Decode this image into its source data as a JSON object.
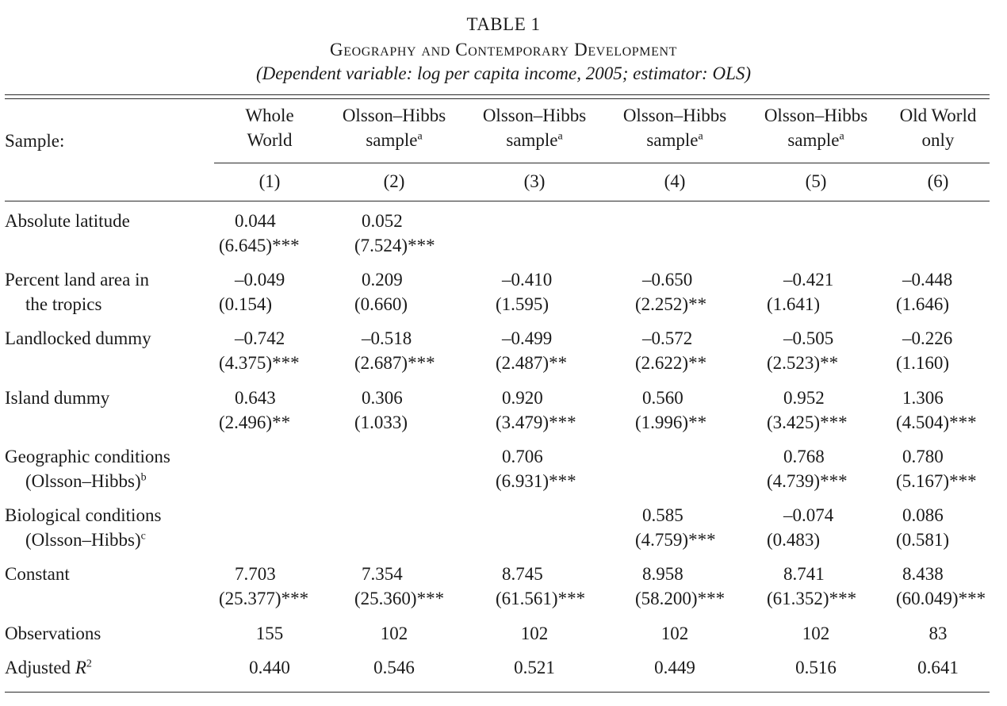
{
  "table": {
    "number": "TABLE 1",
    "title": "Geography and Contemporary Development",
    "subtitle": "(Dependent variable: log per capita income, 2005; estimator: OLS)",
    "sample_label": "Sample:",
    "columns": [
      {
        "line1": "Whole",
        "line2": "World",
        "sup": "",
        "num": "(1)"
      },
      {
        "line1": "Olsson–Hibbs",
        "line2": "sample",
        "sup": "a",
        "num": "(2)"
      },
      {
        "line1": "Olsson–Hibbs",
        "line2": "sample",
        "sup": "a",
        "num": "(3)"
      },
      {
        "line1": "Olsson–Hibbs",
        "line2": "sample",
        "sup": "a",
        "num": "(4)"
      },
      {
        "line1": "Olsson–Hibbs",
        "line2": "sample",
        "sup": "a",
        "num": "(5)"
      },
      {
        "line1": "Old World",
        "line2": "only",
        "sup": "",
        "num": "(6)"
      }
    ],
    "rows": [
      {
        "label1": "Absolute latitude",
        "label2": "",
        "sup": "",
        "coef": [
          "0.044",
          "0.052",
          "",
          "",
          "",
          ""
        ],
        "t": [
          "(6.645)***",
          "(7.524)***",
          "",
          "",
          "",
          ""
        ]
      },
      {
        "label1": "Percent land area in",
        "label2": "the tropics",
        "sup": "",
        "coef": [
          "–0.049",
          "0.209",
          "–0.410",
          "–0.650",
          "–0.421",
          "–0.448"
        ],
        "t": [
          "(0.154)",
          "(0.660)",
          "(1.595)",
          "(2.252)**",
          "(1.641)",
          "(1.646)"
        ]
      },
      {
        "label1": "Landlocked dummy",
        "label2": "",
        "sup": "",
        "coef": [
          "–0.742",
          "–0.518",
          "–0.499",
          "–0.572",
          "–0.505",
          "–0.226"
        ],
        "t": [
          "(4.375)***",
          "(2.687)***",
          "(2.487)**",
          "(2.622)**",
          "(2.523)**",
          "(1.160)"
        ]
      },
      {
        "label1": "Island dummy",
        "label2": "",
        "sup": "",
        "coef": [
          "0.643",
          "0.306",
          "0.920",
          "0.560",
          "0.952",
          "1.306"
        ],
        "t": [
          "(2.496)**",
          "(1.033)",
          "(3.479)***",
          "(1.996)**",
          "(3.425)***",
          "(4.504)***"
        ]
      },
      {
        "label1": "Geographic conditions",
        "label2": "(Olsson–Hibbs)",
        "sup": "b",
        "coef": [
          "",
          "",
          "0.706",
          "",
          "0.768",
          "0.780"
        ],
        "t": [
          "",
          "",
          "(6.931)***",
          "",
          "(4.739)***",
          "(5.167)***"
        ]
      },
      {
        "label1": "Biological conditions",
        "label2": "(Olsson–Hibbs)",
        "sup": "c",
        "coef": [
          "",
          "",
          "",
          "0.585",
          "–0.074",
          "0.086"
        ],
        "t": [
          "",
          "",
          "",
          "(4.759)***",
          "(0.483)",
          "(0.581)"
        ]
      },
      {
        "label1": "Constant",
        "label2": "",
        "sup": "",
        "coef": [
          "7.703",
          "7.354",
          "8.745",
          "8.958",
          "8.741",
          "8.438"
        ],
        "t": [
          "(25.377)***",
          "(25.360)***",
          "(61.561)***",
          "(58.200)***",
          "(61.352)***",
          "(60.049)***"
        ]
      }
    ],
    "observations": {
      "label": "Observations",
      "values": [
        "155",
        "102",
        "102",
        "102",
        "102",
        "83"
      ]
    },
    "adj_r2": {
      "label": "Adjusted R",
      "sup": "2",
      "values": [
        "0.440",
        "0.546",
        "0.521",
        "0.449",
        "0.516",
        "0.641"
      ]
    }
  }
}
